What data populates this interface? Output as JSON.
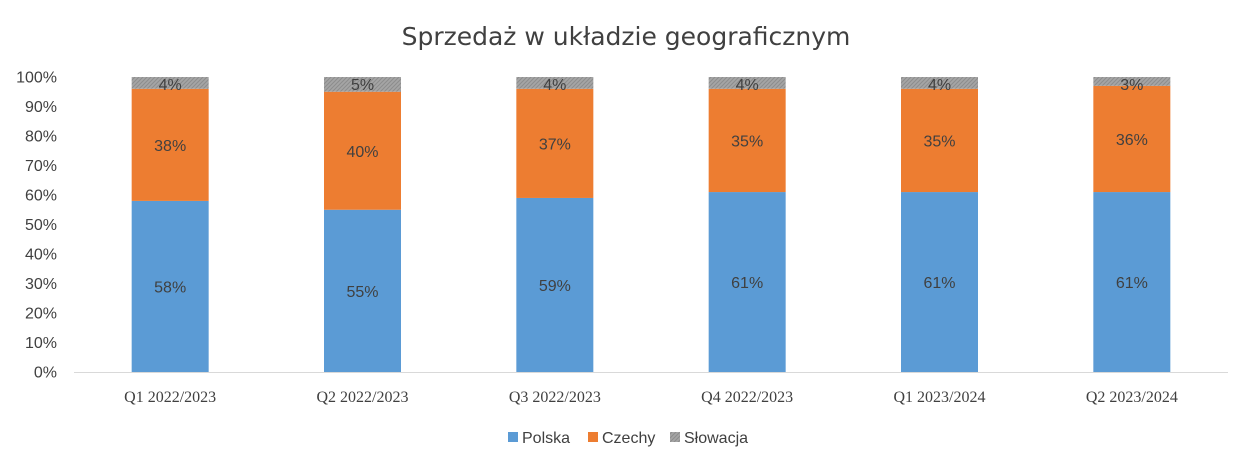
{
  "chart_data": {
    "type": "bar",
    "stacked": true,
    "title": "Sprzedaż w układzie geograficznym",
    "xlabel": "",
    "ylabel": "",
    "ylim": [
      0,
      100
    ],
    "yticks": [
      "0%",
      "10%",
      "20%",
      "30%",
      "40%",
      "50%",
      "60%",
      "70%",
      "80%",
      "90%",
      "100%"
    ],
    "categories": [
      "Q1 2022/2023",
      "Q2 2022/2023",
      "Q3 2022/2023",
      "Q4 2022/2023",
      "Q1 2023/2024",
      "Q2 2023/2024"
    ],
    "series": [
      {
        "name": "Polska",
        "color": "#5B9BD5",
        "values": [
          58,
          55,
          59,
          61,
          61,
          61
        ],
        "labels": [
          "58%",
          "55%",
          "59%",
          "61%",
          "61%",
          "61%"
        ]
      },
      {
        "name": "Czechy",
        "color": "#ED7D31",
        "values": [
          38,
          40,
          37,
          35,
          35,
          36
        ],
        "labels": [
          "38%",
          "40%",
          "37%",
          "35%",
          "35%",
          "36%"
        ]
      },
      {
        "name": "Słowacja",
        "color": "#A5A5A5",
        "values": [
          4,
          5,
          4,
          4,
          4,
          3
        ],
        "labels": [
          "4%",
          "5%",
          "4%",
          "4%",
          "4%",
          "3%"
        ]
      }
    ],
    "grid": false,
    "legend": "bottom"
  }
}
